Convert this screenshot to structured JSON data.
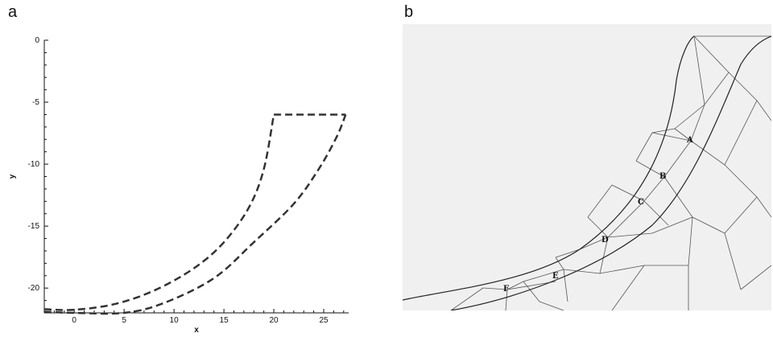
{
  "panels": {
    "a_label": "a",
    "b_label": "b"
  },
  "chart_data": {
    "type": "line",
    "title": "",
    "xlabel": "x",
    "ylabel": "y",
    "xlim": [
      -3,
      27.5
    ],
    "ylim": [
      -22,
      0
    ],
    "xticks": [
      0,
      5,
      10,
      15,
      20,
      25
    ],
    "yticks": [
      0,
      -5,
      -10,
      -15,
      -20
    ],
    "grid": false,
    "line_style": "dashed",
    "line_color": "#333333",
    "series": [
      {
        "points": [
          [
            -3,
            -21.7
          ],
          [
            0,
            -21.75
          ],
          [
            4,
            -21.3
          ],
          [
            8,
            -20.2
          ],
          [
            12,
            -18.4
          ],
          [
            15,
            -16.3
          ],
          [
            17.5,
            -13.5
          ],
          [
            19,
            -10.4
          ],
          [
            20,
            -6
          ]
        ]
      },
      {
        "points": [
          [
            -3,
            -21.9
          ],
          [
            0,
            -22
          ],
          [
            5,
            -22
          ],
          [
            9,
            -21.2
          ],
          [
            14,
            -19.2
          ],
          [
            18,
            -16.3
          ],
          [
            22,
            -13.2
          ],
          [
            24.5,
            -10.4
          ],
          [
            26.3,
            -7.8
          ],
          [
            27.2,
            -6
          ]
        ]
      },
      {
        "points": [
          [
            20,
            -6
          ],
          [
            27.2,
            -6
          ]
        ]
      }
    ]
  },
  "mesh": {
    "background": "#f0f0f0",
    "labels": [
      "A",
      "B",
      "C",
      "D",
      "E",
      "F"
    ]
  }
}
